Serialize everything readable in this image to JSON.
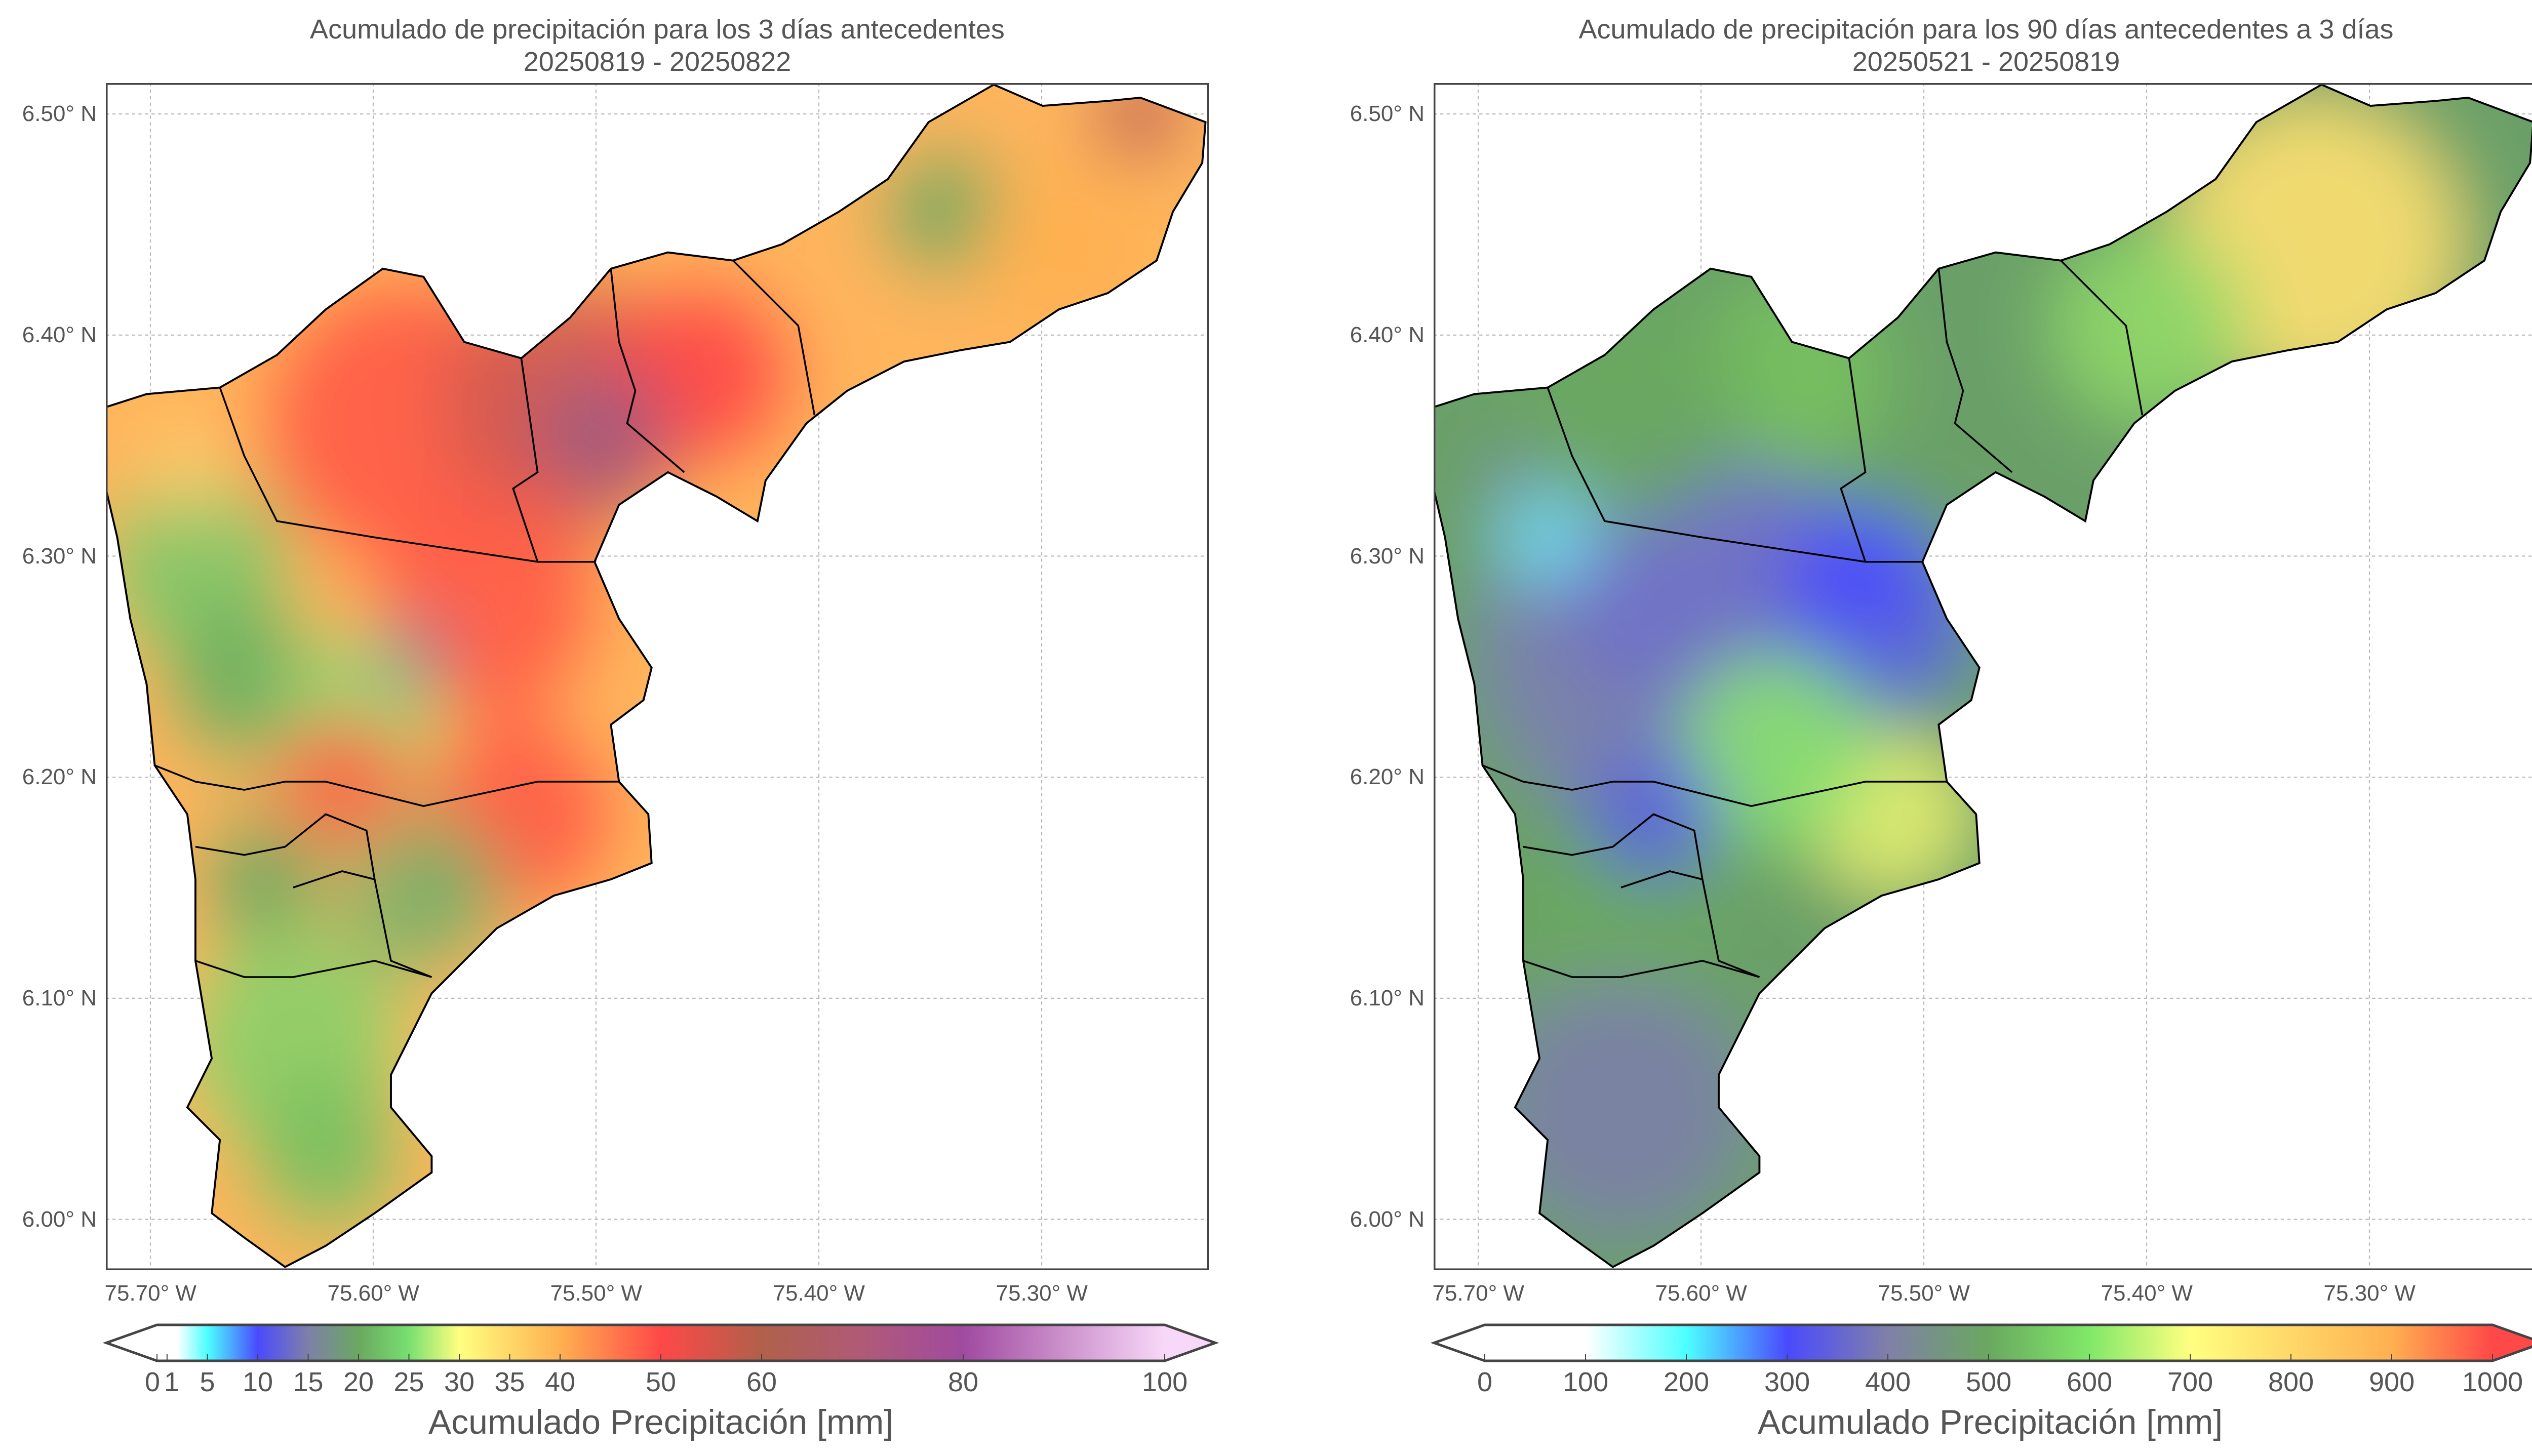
{
  "chart_data": [
    {
      "type": "heatmap",
      "title": "Acumulado de precipitación para los 3 días antecedentes",
      "subtitle": "20250819 - 20250822",
      "xlabel": "",
      "ylabel": "",
      "x_ticks": [
        "75.70° W",
        "75.60° W",
        "75.50° W",
        "75.40° W",
        "75.30° W"
      ],
      "x_tick_values": [
        -75.7,
        -75.6,
        -75.5,
        -75.4,
        -75.3
      ],
      "y_ticks": [
        "6.50° N",
        "6.40° N",
        "6.30° N",
        "6.20° N",
        "6.10° N",
        "6.00° N"
      ],
      "y_tick_values": [
        6.5,
        6.4,
        6.3,
        6.2,
        6.1,
        6.0
      ],
      "xlim": [
        -75.72,
        -75.225
      ],
      "ylim": [
        5.977,
        6.514
      ],
      "grid": true,
      "colorbar": {
        "label": "Acumulado Precipitación [mm]",
        "ticks": [
          0,
          1,
          5,
          10,
          15,
          20,
          25,
          30,
          35,
          40,
          50,
          60,
          80,
          100
        ],
        "tick_labels": [
          "0",
          "1",
          "5",
          "10",
          "15",
          "20",
          "25",
          "30",
          "35",
          "40",
          "50",
          "60",
          "80",
          "100"
        ],
        "range": [
          0,
          100
        ],
        "extend": "both",
        "colors": [
          {
            "v": 0,
            "c": "#ffffff"
          },
          {
            "v": 2,
            "c": "#ffffff"
          },
          {
            "v": 5,
            "c": "#4dffff"
          },
          {
            "v": 10,
            "c": "#4a4aff"
          },
          {
            "v": 15,
            "c": "#7f80a8"
          },
          {
            "v": 20,
            "c": "#6aa860"
          },
          {
            "v": 25,
            "c": "#78e070"
          },
          {
            "v": 30,
            "c": "#ffff80"
          },
          {
            "v": 40,
            "c": "#ffb050"
          },
          {
            "v": 50,
            "c": "#ff4848"
          },
          {
            "v": 60,
            "c": "#b0604a"
          },
          {
            "v": 70,
            "c": "#b05a78"
          },
          {
            "v": 80,
            "c": "#a04aa0"
          },
          {
            "v": 100,
            "c": "#f8d8f8"
          }
        ]
      }
    },
    {
      "type": "heatmap",
      "title": "Acumulado de precipitación para los 90 días antecedentes a 3 días",
      "subtitle": "20250521 - 20250819",
      "xlabel": "",
      "ylabel": "",
      "x_ticks": [
        "75.70° W",
        "75.60° W",
        "75.50° W",
        "75.40° W",
        "75.30° W"
      ],
      "x_tick_values": [
        -75.7,
        -75.6,
        -75.5,
        -75.4,
        -75.3
      ],
      "y_ticks": [
        "6.50° N",
        "6.40° N",
        "6.30° N",
        "6.20° N",
        "6.10° N",
        "6.00° N"
      ],
      "y_tick_values": [
        6.5,
        6.4,
        6.3,
        6.2,
        6.1,
        6.0
      ],
      "xlim": [
        -75.72,
        -75.225
      ],
      "ylim": [
        5.977,
        6.514
      ],
      "grid": true,
      "colorbar": {
        "label": "Acumulado Precipitación [mm]",
        "ticks": [
          0,
          100,
          200,
          300,
          400,
          500,
          600,
          700,
          800,
          900,
          1000
        ],
        "tick_labels": [
          "0",
          "100",
          "200",
          "300",
          "400",
          "500",
          "600",
          "700",
          "800",
          "900",
          "1000"
        ],
        "range": [
          0,
          1000
        ],
        "extend": "both",
        "colors": [
          {
            "v": 0,
            "c": "#ffffff"
          },
          {
            "v": 100,
            "c": "#ffffff"
          },
          {
            "v": 200,
            "c": "#4dffff"
          },
          {
            "v": 300,
            "c": "#4a4aff"
          },
          {
            "v": 400,
            "c": "#8080a8"
          },
          {
            "v": 500,
            "c": "#6aa860"
          },
          {
            "v": 600,
            "c": "#80e868"
          },
          {
            "v": 700,
            "c": "#ffff80"
          },
          {
            "v": 900,
            "c": "#ffb050"
          },
          {
            "v": 1000,
            "c": "#ff4848"
          }
        ]
      }
    }
  ]
}
